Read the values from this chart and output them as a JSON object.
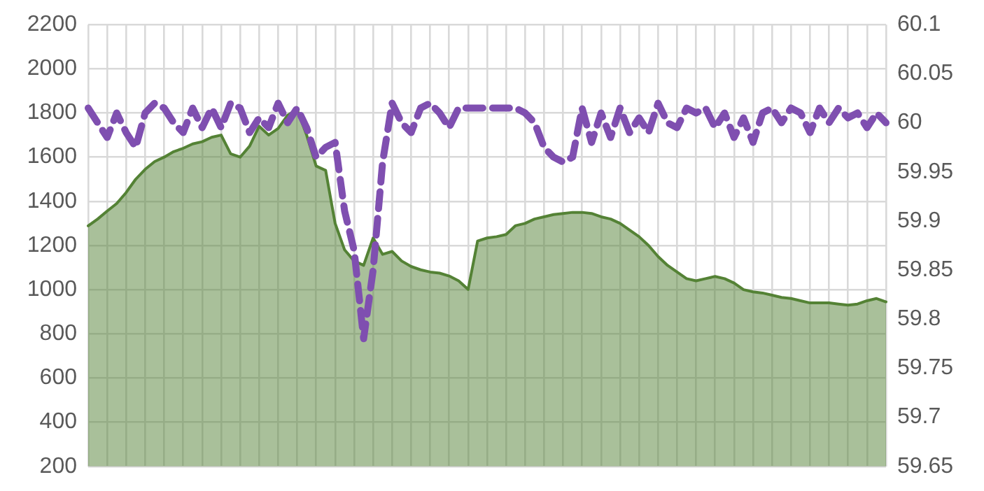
{
  "chart_data": {
    "type": "area",
    "categories": [
      null,
      null,
      null,
      null,
      null,
      null,
      null,
      null,
      null,
      null,
      null,
      null,
      null,
      null,
      null,
      null,
      null,
      null,
      null,
      null,
      null,
      null,
      null,
      null,
      null,
      null,
      null,
      null,
      null,
      null,
      null,
      null,
      null,
      null,
      null,
      null,
      null,
      null,
      null,
      null,
      null,
      null,
      null,
      null,
      null,
      null,
      null,
      null,
      null,
      null,
      null,
      null,
      null,
      null,
      null,
      null,
      null,
      null,
      null,
      null,
      null,
      null,
      null,
      null,
      null,
      null,
      null,
      null,
      null,
      null,
      null,
      null,
      null,
      null,
      null,
      null,
      null,
      null,
      null,
      null,
      null,
      null,
      null,
      null,
      null
    ],
    "series": [
      {
        "color": "#548235",
        "values": [
          1289,
          1320,
          1356,
          1390,
          1440,
          1500,
          1545,
          1580,
          1600,
          1625,
          1640,
          1660,
          1670,
          1690,
          1700,
          1615,
          1600,
          1650,
          1740,
          1700,
          1730,
          1790,
          1815,
          1700,
          1560,
          1540,
          1300,
          1180,
          1130,
          1110,
          1234,
          1160,
          1173,
          1130,
          1105,
          1090,
          1080,
          1075,
          1062,
          1040,
          1001,
          1220,
          1234,
          1240,
          1250,
          1290,
          1300,
          1320,
          1330,
          1340,
          1345,
          1350,
          1350,
          1345,
          1330,
          1320,
          1300,
          1270,
          1240,
          1200,
          1150,
          1110,
          1080,
          1050,
          1040,
          1050,
          1060,
          1050,
          1030,
          1000,
          990,
          985,
          975,
          965,
          960,
          950,
          940,
          940,
          940,
          935,
          930,
          935,
          950,
          960,
          945
        ]
      },
      {
        "type": "line",
        "axis": "y2",
        "color": "#7f4fb0",
        "line_style": "dashed",
        "values": [
          60.015,
          60.0,
          59.985,
          60.01,
          59.99,
          59.975,
          60.01,
          60.02,
          60.015,
          60.0,
          59.99,
          60.015,
          59.995,
          60.015,
          59.995,
          60.02,
          60.015,
          59.99,
          60.005,
          59.995,
          60.02,
          60.0,
          60.015,
          59.995,
          59.965,
          59.975,
          59.98,
          59.91,
          59.87,
          59.78,
          59.85,
          59.96,
          60.02,
          60.0,
          59.99,
          60.015,
          60.02,
          60.01,
          59.995,
          60.015,
          60.015,
          60.015,
          60.015,
          60.015,
          60.015,
          60.015,
          60.01,
          60.0,
          59.975,
          59.965,
          59.96,
          59.965,
          60.015,
          59.98,
          60.01,
          59.985,
          60.015,
          59.99,
          60.005,
          59.99,
          60.02,
          60.0,
          59.995,
          60.015,
          60.01,
          60.015,
          59.995,
          60.01,
          59.985,
          60.005,
          59.98,
          60.01,
          60.015,
          60.0,
          60.015,
          60.01,
          59.99,
          60.015,
          60.0,
          60.015,
          60.005,
          60.01,
          59.995,
          60.01,
          60.0
        ]
      }
    ],
    "ylim": [
      200,
      2200
    ],
    "yticks": [
      200,
      400,
      600,
      800,
      1000,
      1200,
      1400,
      1600,
      1800,
      2000,
      2200
    ],
    "y2lim": [
      59.65,
      60.1
    ],
    "y2ticks": [
      59.65,
      59.7,
      59.75,
      59.8,
      59.85,
      59.9,
      59.95,
      60,
      60.05,
      60.1
    ],
    "grid": true,
    "legend": false,
    "marker": "none"
  }
}
